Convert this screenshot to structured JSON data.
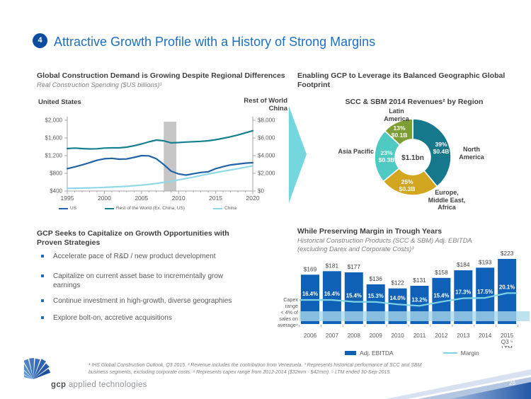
{
  "slide": {
    "number_badge": "4",
    "title": "Attractive Growth Profile with a History of Strong Margins"
  },
  "sections": {
    "construction_demand": {
      "heading": "Global Construction Demand is Growing Despite Regional Differences",
      "subheading": "Real Construction Spending ($US billions)¹",
      "left_axis_title": "United States",
      "right_axis_title": "Rest of World\nChina"
    },
    "geographic": {
      "heading": "Enabling GCP to Leverage its Balanced Geographic Global\nFootprint",
      "chart_title": "SCC & SBM 2014 Revenues² by Region"
    },
    "strategies": {
      "heading": "GCP Seeks to Capitalize on Growth Opportunities with\nProven Strategies",
      "bullets": [
        "Accelerate pace of R&D / new product development",
        "Capitalize on current asset base to incrementally grow earnings",
        "Continue investment in high-growth, diverse geographies",
        "Explore bolt-on, accretive acquisitions"
      ]
    },
    "margins": {
      "heading": "While Preserving Margin in Trough Years",
      "subheading": "Historical Construction Products (SCC & SBM) Adj. EBITDA\n(excluding Darex and Corporate Costs)³",
      "capex_note": "Capex\nrange\n< 4% of\nsales on\naverage⁴"
    }
  },
  "footer": {
    "footnotes": "¹ IHS Global Construction Outlook, Q3 2015. ² Revenue includes the contribution from Venezuela. ³ Represents historical performance of SCC and SBM\nbusiness segments, excluding corporate costs. ⁴ Represents capex range from 2012-2014 ($32mm - $42mm). ⁵ LTM ended 30-Sep-2015.",
    "logo_bold": "gcp",
    "logo_rest": " applied technologies",
    "page_number": "26"
  },
  "chart_data": [
    {
      "type": "line",
      "title": "Global Construction Demand is Growing Despite Regional Differences",
      "subtitle": "Real Construction Spending ($US billions)",
      "x": [
        1995,
        1996,
        1997,
        1998,
        1999,
        2000,
        2001,
        2002,
        2003,
        2004,
        2005,
        2006,
        2007,
        2008,
        2009,
        2010,
        2011,
        2012,
        2013,
        2014,
        2015,
        2016,
        2017,
        2018,
        2019,
        2020
      ],
      "x_ticks": [
        "1995",
        "2000",
        "2005",
        "2010",
        "2015",
        "2020"
      ],
      "left_axis": {
        "title": "United States",
        "min": 400,
        "max": 2000,
        "tick_values": [
          2000,
          1600,
          1200,
          800,
          400
        ],
        "ticks": [
          "$2,000",
          "$1,600",
          "$1,200",
          "$800",
          "$400"
        ]
      },
      "right_axis": {
        "title": "Rest of World / China",
        "min": 0,
        "max": 8000,
        "tick_values": [
          8000,
          6000,
          4000,
          2000,
          0
        ],
        "ticks": [
          "$8,000",
          "$6,000",
          "$4,000",
          "$2,000",
          "$0"
        ]
      },
      "recession_band": [
        2008,
        2009.7
      ],
      "series": [
        {
          "name": "US",
          "axis": "left",
          "color": "#2263a8",
          "values": [
            905,
            945,
            990,
            1040,
            1095,
            1130,
            1140,
            1120,
            1125,
            1160,
            1200,
            1195,
            1130,
            1000,
            850,
            785,
            760,
            790,
            820,
            835,
            905,
            950,
            990,
            1010,
            1030,
            1040
          ]
        },
        {
          "name": "Rest of the World (Ex. China, US)",
          "axis": "right",
          "color": "#15818e",
          "values": [
            4800,
            4860,
            4800,
            4760,
            4780,
            4860,
            4880,
            4880,
            4960,
            5120,
            5320,
            5560,
            5760,
            5680,
            5450,
            5480,
            5540,
            5580,
            5620,
            5680,
            5800,
            5960,
            6140,
            6340,
            6580,
            6820
          ]
        },
        {
          "name": "China",
          "axis": "right",
          "color": "#8fd9e6",
          "values": [
            300,
            315,
            330,
            350,
            380,
            415,
            450,
            490,
            540,
            600,
            665,
            750,
            855,
            975,
            1110,
            1260,
            1420,
            1580,
            1750,
            1920,
            2080,
            2230,
            2380,
            2530,
            2690,
            2850
          ]
        }
      ]
    },
    {
      "type": "pie",
      "title": "SCC & SBM 2014 Revenues² by Region",
      "center_label": "$1.1bn",
      "slices": [
        {
          "name": "North America",
          "name_label": "North\nAmerica",
          "pct": 39,
          "pct_label": "39%",
          "amount": "$0.4B",
          "color": "#16798b"
        },
        {
          "name": "Europe, Middle East, Africa",
          "name_label": "Europe,\nMiddle East,\nAfrica",
          "pct": 25,
          "pct_label": "25%",
          "amount": "$0.3B",
          "color": "#d2a61e"
        },
        {
          "name": "Asia Pacific",
          "name_label": "Asia Pacific",
          "pct": 23,
          "pct_label": "23%",
          "amount": "$0.3B",
          "color": "#4ecac2"
        },
        {
          "name": "Latin America",
          "name_label": "Latin\nAmerica",
          "pct": 13,
          "pct_label": "13%",
          "amount": "$0.1B",
          "color": "#7d9d37"
        }
      ]
    },
    {
      "type": "bar",
      "title": "While Preserving Margin in Trough Years",
      "subtitle": "Historical Construction Products (SCC & SBM) Adj. EBITDA (excluding Darex and Corporate Costs)",
      "categories": [
        [
          "2006"
        ],
        [
          "2007"
        ],
        [
          "2008"
        ],
        [
          "2009"
        ],
        [
          "2010"
        ],
        [
          "2011"
        ],
        [
          "2012"
        ],
        [
          "2013"
        ],
        [
          "2014"
        ],
        [
          "2015",
          "Q3 ⁵",
          "LTM"
        ]
      ],
      "series": [
        {
          "name": "Adj. EBITDA",
          "kind": "bar",
          "color": "#0f61b7",
          "values": [
            169,
            181,
            177,
            136,
            122,
            131,
            158,
            184,
            193,
            223
          ],
          "labels": [
            "$169",
            "$181",
            "$177",
            "$136",
            "$122",
            "$131",
            "$158",
            "$184",
            "$193",
            "$223"
          ]
        },
        {
          "name": "Margin",
          "kind": "line",
          "color": "#7fd4e4",
          "values": [
            16.4,
            16.4,
            15.4,
            15.3,
            14.0,
            13.2,
            15.4,
            17.3,
            17.5,
            20.1
          ],
          "labels": [
            "16.4%",
            "16.4%",
            "15.4%",
            "15.3%",
            "14.0%",
            "13.2%",
            "15.4%",
            "17.3%",
            "17.5%",
            "20.1%"
          ]
        }
      ],
      "capex_band_color": "#a9d8ea"
    }
  ]
}
